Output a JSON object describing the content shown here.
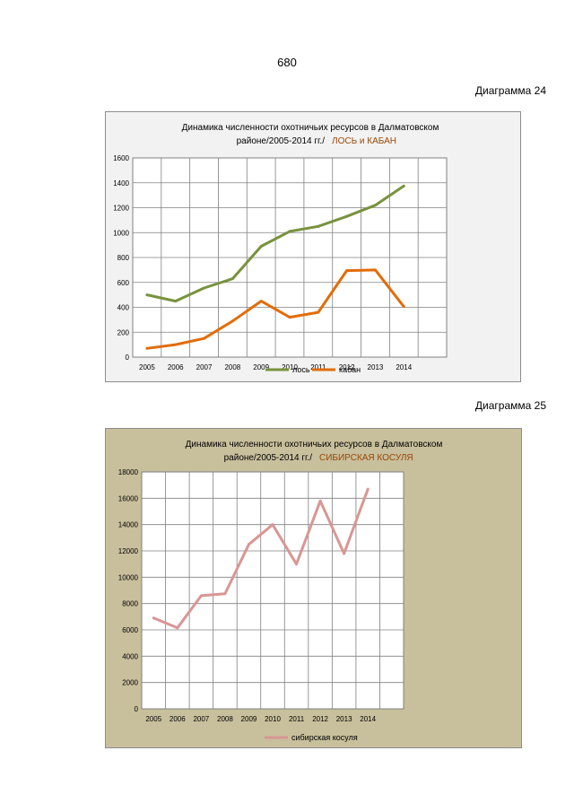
{
  "page": {
    "number": "680"
  },
  "captions": {
    "chart24": "Диаграмма 24",
    "chart25": "Диаграмма 25"
  },
  "colors": {
    "los": "#77933c",
    "kaban": "#e36c09",
    "kosulya": "#d99694",
    "chart1_bg": "#f2f2f2",
    "chart2_bg": "#c8bf9c",
    "title_accent": "#984806"
  },
  "chart_data": [
    {
      "type": "line",
      "title_line1": "Динамика численности охотничьих ресурсов в Далматовском",
      "title_line2": "районе/2005-2014 гг./",
      "title_accent": "ЛОСЬ и КАБАН",
      "categories": [
        "2005",
        "2006",
        "2007",
        "2008",
        "2009",
        "2010",
        "2011",
        "2012",
        "2013",
        "2014"
      ],
      "ylim": [
        0,
        1600
      ],
      "yticks": [
        "0",
        "200",
        "400",
        "600",
        "800",
        "1000",
        "1200",
        "1400",
        "1600"
      ],
      "grid": true,
      "legend_position": "bottom",
      "series": [
        {
          "name": "лось",
          "color": "#77933c",
          "values": [
            500,
            450,
            555,
            630,
            890,
            1010,
            1050,
            1130,
            1220,
            1375
          ]
        },
        {
          "name": "кабан",
          "color": "#e36c09",
          "values": [
            70,
            100,
            150,
            290,
            450,
            320,
            360,
            695,
            700,
            405
          ]
        }
      ]
    },
    {
      "type": "line",
      "title_line1": "Динамика численности  охотничьих  ресурсов  в  Далматовском",
      "title_line2": "районе/2005-2014  гг./",
      "title_accent": "СИБИРСКАЯ  КОСУЛЯ",
      "categories": [
        "2005",
        "2006",
        "2007",
        "2008",
        "2009",
        "2010",
        "2011",
        "2012",
        "2013",
        "2014"
      ],
      "ylim": [
        0,
        18000
      ],
      "yticks": [
        "0",
        "2000",
        "4000",
        "6000",
        "8000",
        "10000",
        "12000",
        "14000",
        "16000",
        "18000"
      ],
      "grid": true,
      "legend_position": "bottom",
      "series": [
        {
          "name": "сибирская косуля",
          "color": "#d99694",
          "values": [
            6900,
            6150,
            8600,
            8750,
            12500,
            14000,
            11000,
            15800,
            11800,
            16700
          ]
        }
      ]
    }
  ]
}
